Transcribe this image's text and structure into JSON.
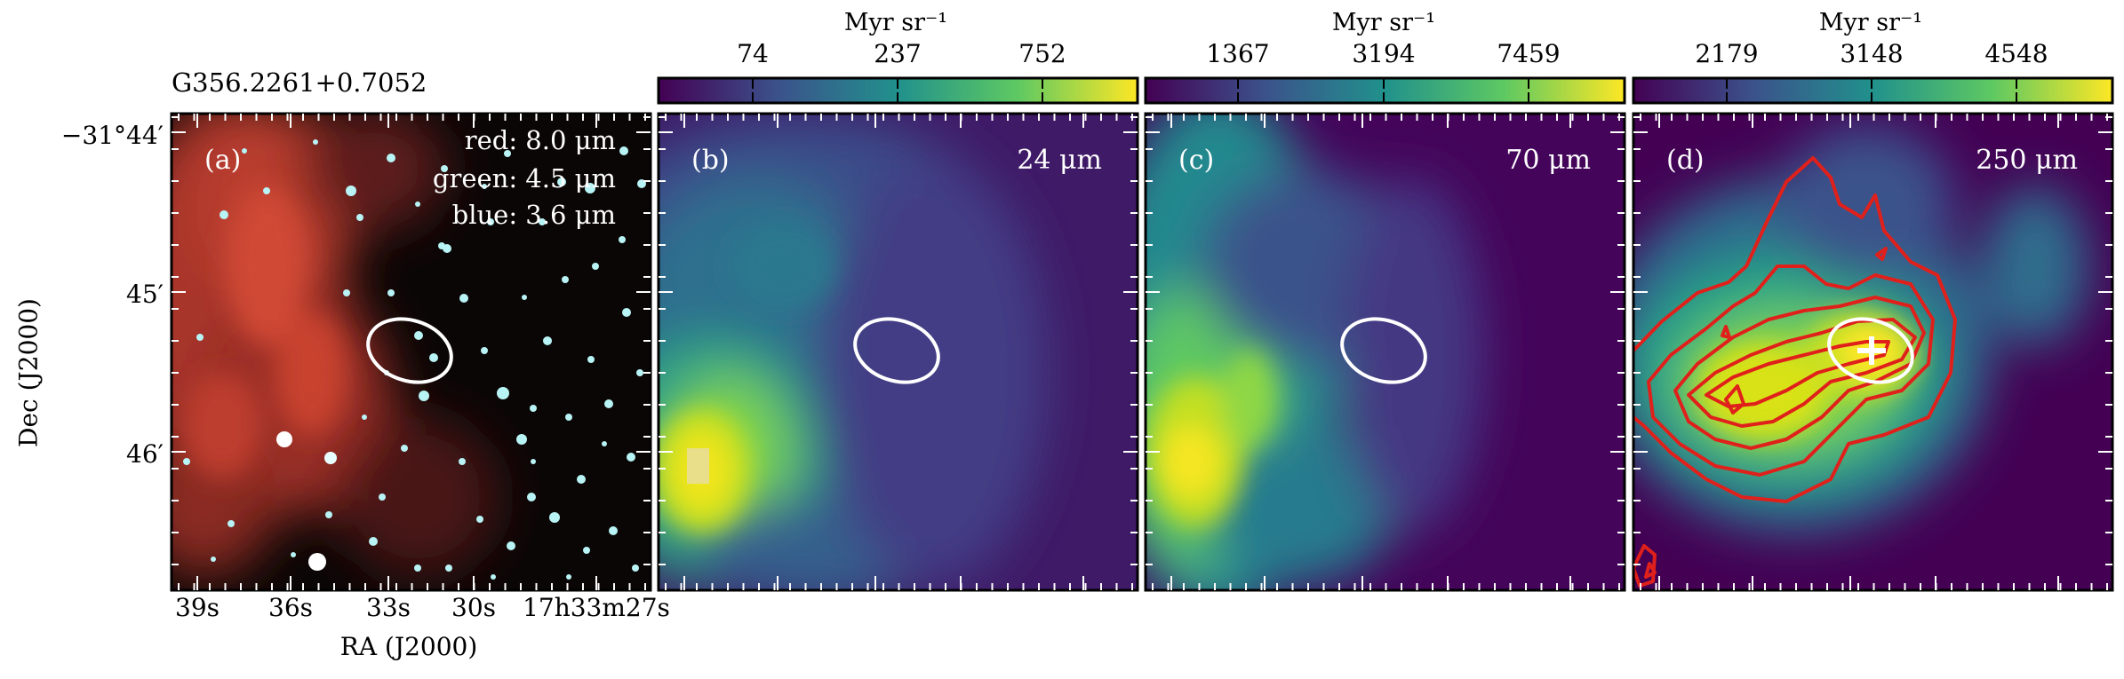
{
  "figure": {
    "source_name": "G356.2261+0.7052",
    "ra_axis_label": "RA (J2000)",
    "dec_axis_label": "Dec (J2000)",
    "ra_ticks": [
      "39s",
      "36s",
      "33s",
      "30s",
      "17h33m27s"
    ],
    "dec_ticks": [
      "−31°44′",
      "45′",
      "46′"
    ]
  },
  "panels": [
    {
      "id": "a",
      "label": "(a)",
      "legend": [
        "red: 8.0 μm",
        "green: 4.5 μm",
        "blue: 3.6 μm"
      ],
      "colors": {
        "red": "#c0392b",
        "green": "#5a9",
        "blue": "#7fe9ef"
      }
    },
    {
      "id": "b",
      "label": "(b)",
      "wavelength": "24 μm",
      "colorbar": {
        "unit": "Myr sr⁻¹",
        "ticks": [
          "74",
          "237",
          "752"
        ]
      }
    },
    {
      "id": "c",
      "label": "(c)",
      "wavelength": "70 μm",
      "colorbar": {
        "unit": "Myr sr⁻¹",
        "ticks": [
          "1367",
          "3194",
          "7459"
        ]
      }
    },
    {
      "id": "d",
      "label": "(d)",
      "wavelength": "250 μm",
      "colorbar": {
        "unit": "Myr sr⁻¹",
        "ticks": [
          "2179",
          "3148",
          "4548"
        ]
      },
      "contour_color": "#e0201b"
    }
  ],
  "colormap": [
    "#440154",
    "#3b528b",
    "#21918c",
    "#5ec962",
    "#fde725"
  ]
}
